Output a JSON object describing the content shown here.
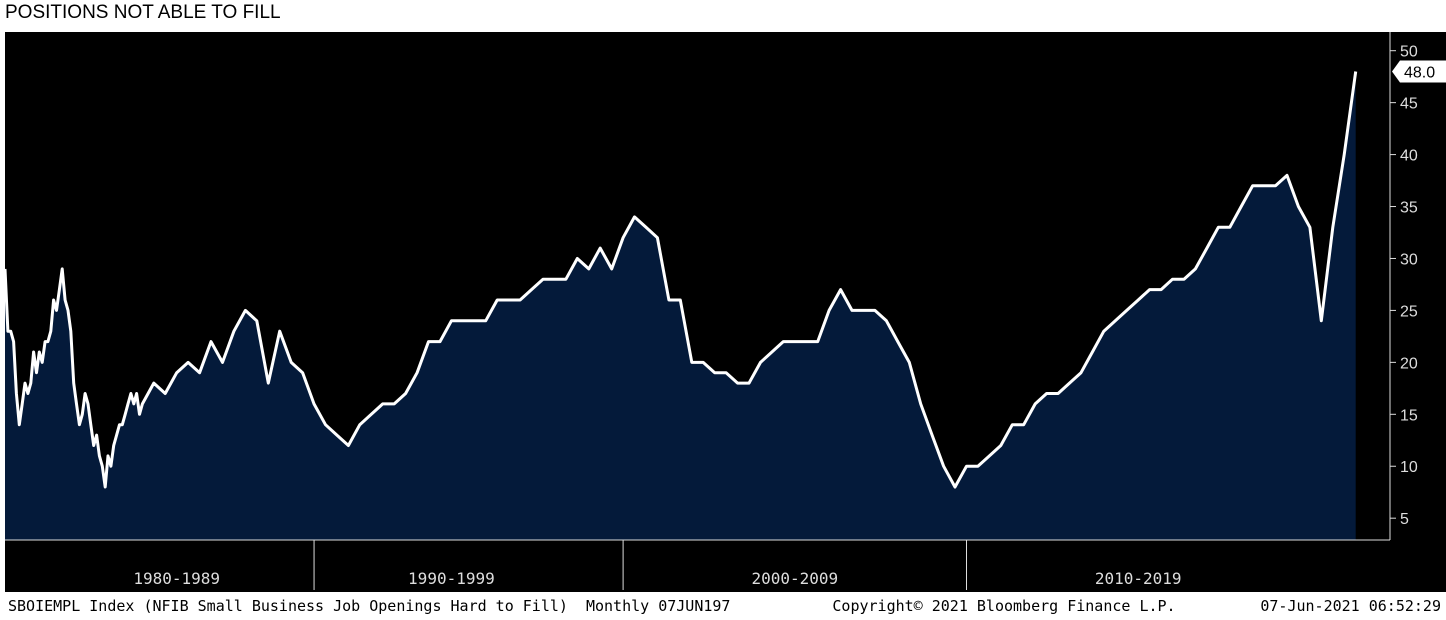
{
  "chart_data": {
    "type": "area",
    "title": "POSITIONS NOT ABLE TO FILL",
    "footer_left": "SBOIEMPL Index (NFIB Small Business Job Openings Hard to Fill)  Monthly 07JUN197",
    "footer_center": "Copyright© 2021 Bloomberg Finance L.P.",
    "footer_right": "07-Jun-2021 06:52:29",
    "x": [
      0,
      1,
      2,
      3,
      4,
      5,
      6,
      7,
      8,
      9,
      10,
      11,
      12,
      13,
      14,
      15,
      16,
      17,
      18,
      19,
      20,
      21,
      22,
      23,
      24,
      25,
      26,
      27,
      28,
      29,
      30,
      31,
      32,
      33,
      34,
      35,
      36,
      37,
      38,
      39,
      40,
      41,
      42,
      43,
      44,
      45,
      46,
      47,
      48,
      52,
      56,
      60,
      64,
      68,
      72,
      76,
      80,
      84,
      88,
      92,
      96,
      100,
      104,
      108,
      112,
      116,
      120,
      124,
      128,
      132,
      136,
      140,
      144,
      148,
      152,
      156,
      160,
      164,
      168,
      172,
      176,
      180,
      184,
      188,
      192,
      196,
      200,
      204,
      208,
      212,
      216,
      220,
      224,
      228,
      232,
      236,
      240,
      244,
      248,
      252,
      256,
      260,
      264,
      268,
      272,
      276,
      280,
      284,
      288,
      292,
      296,
      300,
      304,
      308,
      312,
      316,
      320,
      324,
      328,
      332,
      336,
      340,
      344,
      348,
      352,
      356,
      360,
      364,
      368,
      372,
      376,
      380,
      384,
      388,
      392,
      396,
      400,
      404,
      408,
      412,
      416,
      420,
      424,
      428,
      432,
      436,
      440,
      444,
      448,
      452,
      456,
      460,
      464,
      468,
      472
    ],
    "values": [
      29,
      23,
      23,
      22,
      17,
      14,
      16,
      18,
      17,
      18,
      21,
      19,
      21,
      20,
      22,
      22,
      23,
      26,
      25,
      27,
      29,
      26,
      25,
      23,
      18,
      16,
      14,
      15,
      17,
      16,
      14,
      12,
      13,
      11,
      10,
      8,
      11,
      10,
      12,
      13,
      14,
      14,
      15,
      16,
      17,
      16,
      17,
      15,
      16,
      18,
      17,
      19,
      20,
      19,
      22,
      20,
      23,
      25,
      24,
      18,
      23,
      20,
      19,
      16,
      14,
      13,
      12,
      14,
      15,
      16,
      16,
      17,
      19,
      22,
      22,
      24,
      24,
      24,
      24,
      26,
      26,
      26,
      27,
      28,
      28,
      28,
      30,
      29,
      31,
      29,
      32,
      34,
      33,
      32,
      26,
      26,
      20,
      20,
      19,
      19,
      18,
      18,
      20,
      21,
      22,
      22,
      22,
      22,
      25,
      27,
      25,
      25,
      25,
      24,
      22,
      20,
      16,
      13,
      10,
      8,
      10,
      10,
      11,
      12,
      14,
      14,
      16,
      17,
      17,
      18,
      19,
      21,
      23,
      24,
      25,
      26,
      27,
      27,
      28,
      28,
      29,
      31,
      33,
      33,
      35,
      37,
      37,
      37,
      38,
      35,
      33,
      24,
      33,
      40,
      48
    ],
    "value_labels": [
      null,
      null,
      null,
      null,
      null,
      null,
      null,
      null,
      null,
      null,
      null,
      null,
      null,
      null,
      null,
      null,
      null,
      null,
      null,
      null,
      null,
      null,
      null,
      null,
      null,
      null,
      null,
      null,
      null,
      null,
      null,
      null,
      null,
      null,
      null,
      null,
      null,
      null,
      null,
      null,
      null,
      null,
      null,
      null,
      null,
      null,
      null,
      null,
      null,
      null,
      null,
      null,
      null,
      null,
      null,
      null,
      null,
      null,
      null,
      null,
      null,
      null,
      null,
      null,
      null,
      null,
      null,
      null,
      null,
      null,
      null,
      null,
      null,
      null,
      null,
      null,
      null,
      null,
      null,
      null,
      null,
      null,
      null,
      null,
      null,
      null,
      null,
      null,
      null,
      null,
      null,
      null,
      null,
      null,
      null,
      null,
      null,
      null,
      null,
      null,
      null,
      null,
      null,
      null,
      null,
      null,
      null,
      null,
      null,
      null,
      null,
      null,
      null,
      null,
      null,
      null,
      null,
      null,
      null,
      null,
      null,
      null,
      null,
      null,
      null,
      null,
      null,
      null,
      null,
      null,
      null,
      null,
      null,
      null,
      null,
      null,
      null,
      null,
      null,
      null,
      null,
      null,
      null,
      null,
      null,
      null,
      null,
      null,
      null,
      null,
      null,
      null,
      null,
      null,
      "48.0"
    ],
    "line_color": "#ffffff",
    "fill_color": "#041a3a",
    "background": "#000000",
    "xlim": [
      0,
      484
    ],
    "xticks": [
      {
        "value": 60,
        "label": "1980-1989"
      },
      {
        "value": 156,
        "label": "1990-1999"
      },
      {
        "value": 276,
        "label": "2000-2009"
      },
      {
        "value": 396,
        "label": "2010-2019"
      }
    ],
    "ylim": [
      2.9,
      51.8
    ],
    "yticks": [
      5,
      10,
      15,
      20,
      25,
      30,
      35,
      40,
      45,
      50
    ]
  }
}
